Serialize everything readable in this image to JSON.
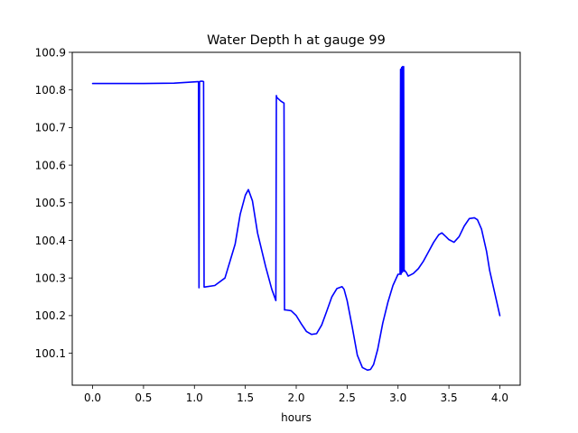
{
  "chart_data": {
    "type": "line",
    "title": "Water Depth h at gauge 99",
    "xlabel": "hours",
    "ylabel": "",
    "xlim": [
      -0.2,
      4.2
    ],
    "ylim": [
      100.015,
      100.9
    ],
    "xticks": [
      0.0,
      0.5,
      1.0,
      1.5,
      2.0,
      2.5,
      3.0,
      3.5,
      4.0
    ],
    "xtick_labels": [
      "0.0",
      "0.5",
      "1.0",
      "1.5",
      "2.0",
      "2.5",
      "3.0",
      "3.5",
      "4.0"
    ],
    "yticks": [
      100.1,
      100.2,
      100.3,
      100.4,
      100.5,
      100.6,
      100.7,
      100.8,
      100.9
    ],
    "ytick_labels": [
      "100.1",
      "100.2",
      "100.3",
      "100.4",
      "100.5",
      "100.6",
      "100.7",
      "100.8",
      "100.9"
    ],
    "grid": false,
    "legend": "none",
    "series": [
      {
        "color": "#0000ff",
        "x": [
          0.0,
          0.5,
          0.8,
          1.03,
          1.04,
          1.045,
          1.05,
          1.06,
          1.08,
          1.09,
          1.095,
          1.1,
          1.2,
          1.3,
          1.4,
          1.45,
          1.5,
          1.53,
          1.57,
          1.62,
          1.7,
          1.76,
          1.8,
          1.805,
          1.81,
          1.85,
          1.88,
          1.885,
          1.9,
          1.95,
          2.0,
          2.05,
          2.1,
          2.15,
          2.2,
          2.25,
          2.3,
          2.35,
          2.4,
          2.45,
          2.47,
          2.5,
          2.55,
          2.6,
          2.65,
          2.7,
          2.73,
          2.76,
          2.8,
          2.85,
          2.9,
          2.95,
          3.0,
          3.02,
          3.025,
          3.03,
          3.035,
          3.04,
          3.045,
          3.05,
          3.055,
          3.06,
          3.065,
          3.08,
          3.1,
          3.15,
          3.2,
          3.25,
          3.3,
          3.35,
          3.4,
          3.43,
          3.47,
          3.5,
          3.55,
          3.6,
          3.65,
          3.7,
          3.75,
          3.78,
          3.82,
          3.87,
          3.9,
          3.95,
          4.0
        ],
        "y": [
          100.817,
          100.817,
          100.818,
          100.822,
          100.822,
          100.274,
          100.822,
          100.823,
          100.823,
          100.822,
          100.276,
          100.276,
          100.28,
          100.3,
          100.39,
          100.47,
          100.52,
          100.535,
          100.505,
          100.42,
          100.33,
          100.27,
          100.24,
          100.785,
          100.78,
          100.77,
          100.765,
          100.215,
          100.215,
          100.213,
          100.2,
          100.178,
          100.158,
          100.15,
          100.152,
          100.175,
          100.212,
          100.25,
          100.272,
          100.277,
          100.27,
          100.24,
          100.17,
          100.095,
          100.062,
          100.055,
          100.057,
          100.07,
          100.11,
          100.18,
          100.235,
          100.28,
          100.31,
          100.31,
          100.855,
          100.31,
          100.86,
          100.315,
          100.862,
          100.318,
          100.862,
          100.318,
          100.32,
          100.315,
          100.305,
          100.312,
          100.325,
          100.345,
          100.37,
          100.395,
          100.415,
          100.42,
          100.41,
          100.402,
          100.395,
          100.41,
          100.438,
          100.458,
          100.46,
          100.455,
          100.43,
          100.37,
          100.32,
          100.26,
          100.2
        ]
      }
    ]
  }
}
